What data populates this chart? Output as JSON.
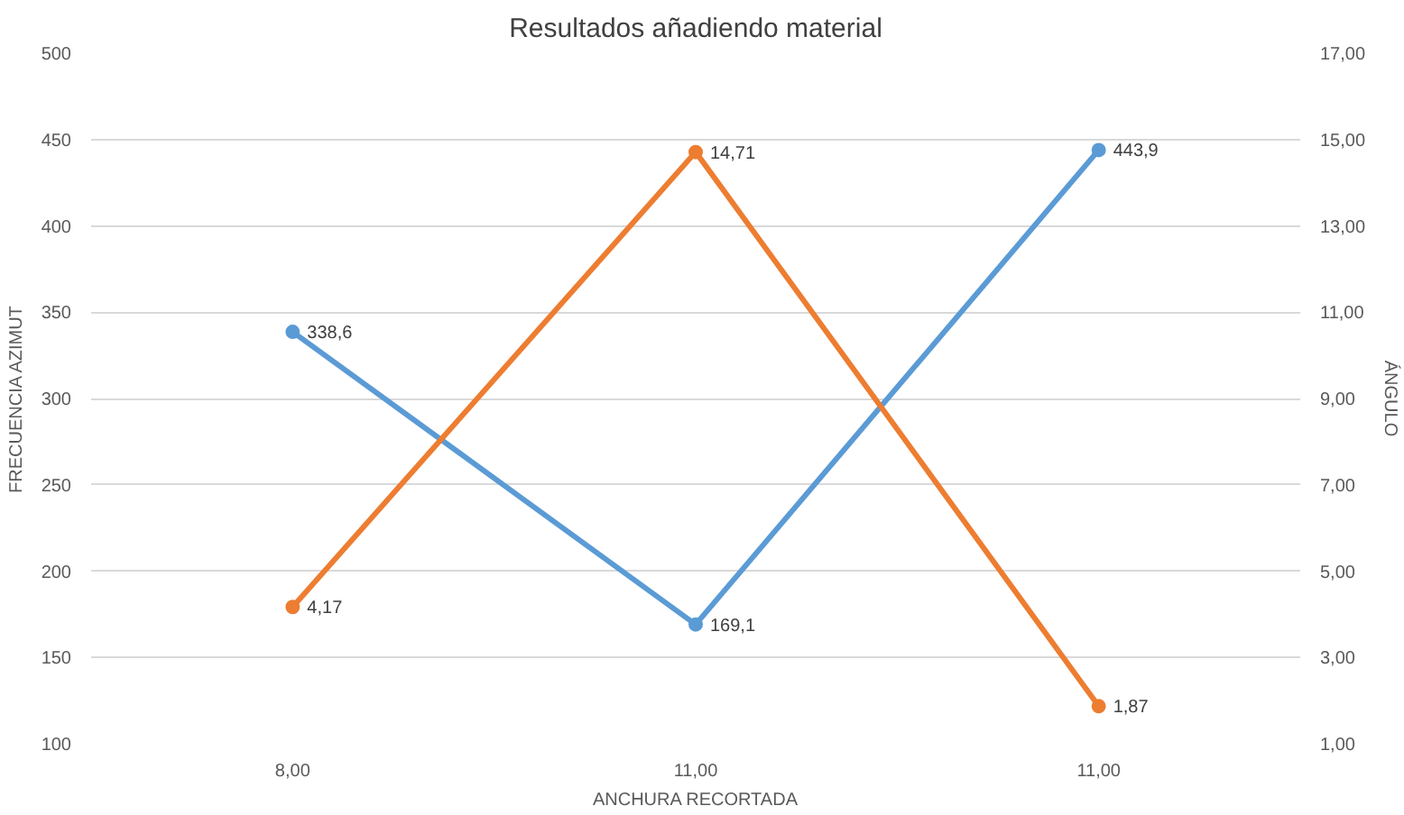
{
  "chart_data": {
    "type": "line",
    "title": "Resultados añadiendo material",
    "xlabel": "ANCHURA RECORTADA",
    "ylabel": "FRECUENCIA AZIMUT",
    "y2label": "ÁNGULO",
    "categories": [
      "8,00",
      "11,00",
      "11,00"
    ],
    "series": [
      {
        "color": "#5b9bd5",
        "values": [
          338.6,
          169.1,
          443.9
        ],
        "value_labels": [
          "338,6",
          "169,1",
          "443,9"
        ]
      },
      {
        "color": "#ed7d31",
        "axis": "y2",
        "values": [
          4.17,
          14.71,
          1.87
        ],
        "value_labels": [
          "4,17",
          "14,71",
          "1,87"
        ]
      }
    ],
    "ylim": [
      100,
      500
    ],
    "yticks": [
      100,
      150,
      200,
      250,
      300,
      350,
      400,
      450,
      500
    ],
    "y2lim": [
      1,
      17
    ],
    "y2ticks": [
      {
        "value": 1,
        "label": "1,00"
      },
      {
        "value": 3,
        "label": "3,00"
      },
      {
        "value": 5,
        "label": "5,00"
      },
      {
        "value": 7,
        "label": "7,00"
      },
      {
        "value": 9,
        "label": "9,00"
      },
      {
        "value": 11,
        "label": "11,00"
      },
      {
        "value": 13,
        "label": "13,00"
      },
      {
        "value": 15,
        "label": "15,00"
      },
      {
        "value": 17,
        "label": "17,00"
      }
    ],
    "grid": "y",
    "marker": "circle",
    "line_style": "solid"
  }
}
